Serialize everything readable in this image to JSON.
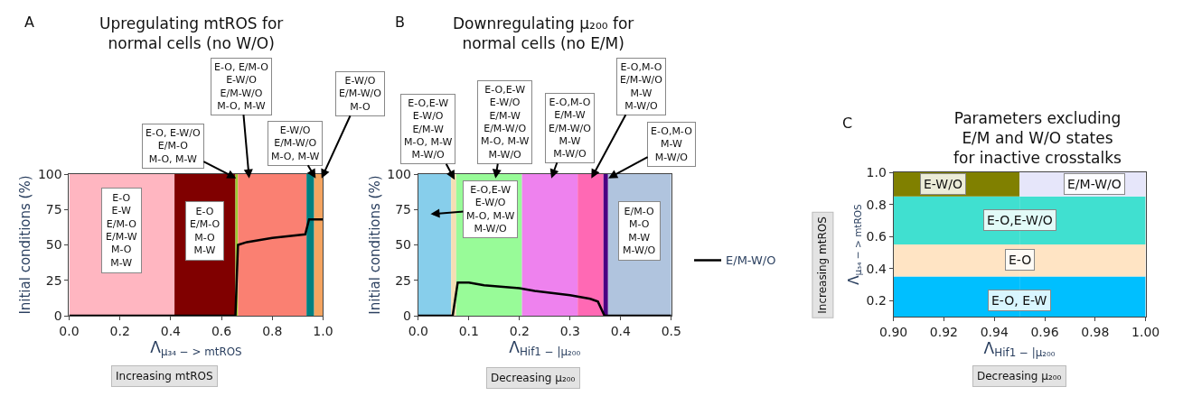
{
  "chart_data": [
    {
      "type": "line",
      "title": "Upregulating mtROS for\nnormal cells (no W/O)",
      "xlabel": "Λ$_{μ₃₄ − > mtROS}$",
      "ylabel": "Initial conditions (%)",
      "xlim": [
        0,
        1
      ],
      "xticks": [
        {
          "value": 0,
          "label": "0.0"
        },
        0.2,
        0.4,
        0.6,
        0.8,
        {
          "value": 1,
          "label": "1.0"
        }
      ],
      "ylim": [
        0,
        100
      ],
      "yticks": [
        0,
        25,
        50,
        75,
        100
      ],
      "grid": false,
      "legend": false,
      "series": [
        {
          "color": "#000000",
          "x": [
            0,
            0.655,
            0.665,
            0.7,
            0.8,
            0.93,
            0.945,
            1.0
          ],
          "values": [
            0,
            0,
            50,
            52,
            55,
            57.5,
            68,
            68
          ]
        }
      ],
      "bands": [
        {
          "axis": "x",
          "from": 0,
          "to": 0.415,
          "color": "#ffb6c1",
          "label": "E-O\nE-W\nE/M-O\nE/M-W\nM-O\nM-W"
        },
        {
          "axis": "x",
          "from": 0.415,
          "to": 0.655,
          "color": "#800000",
          "label": "E-O\nE/M-O\nM-O\nM-W"
        },
        {
          "axis": "x",
          "from": 0.655,
          "to": 0.665,
          "color": "#9acd32"
        },
        {
          "axis": "x",
          "from": 0.665,
          "to": 0.935,
          "color": "#fa8072"
        },
        {
          "axis": "x",
          "from": 0.935,
          "to": 0.965,
          "color": "#008080"
        },
        {
          "axis": "x",
          "from": 0.965,
          "to": 1.0,
          "color": "#f4a460"
        }
      ],
      "annotations": [
        "A",
        "Increasing mtROS",
        {
          "text": "E-O, E-W/O\nE/M-O\nM-O, M-W",
          "x": 0.658,
          "y": 97
        },
        {
          "text": "E-O, E/M-O\nE-W/O\nE/M-W/O\nM-O, M-W",
          "x": 0.709,
          "y": 97
        },
        {
          "text": "E-W/O\nE/M-W/O\nM-O, M-W",
          "x": 0.971,
          "y": 97
        },
        {
          "text": "E-W/O\nE/M-W/O\nM-O",
          "x": 0.994,
          "y": 97
        }
      ]
    },
    {
      "type": "line",
      "title": "Downregulating μ₂₀₀ for\nnormal cells (no E/M)",
      "xlabel": "Λ$_{Hif1 − |μ₂₀₀}$",
      "ylabel": "Initial conditions (%)",
      "xlim": [
        0,
        0.5
      ],
      "xticks": [
        {
          "value": 0,
          "label": "0.0"
        },
        0.1,
        0.2,
        0.3,
        0.4,
        0.5
      ],
      "ylim": [
        0,
        100
      ],
      "yticks": [
        0,
        25,
        50,
        75,
        100
      ],
      "grid": false,
      "legend": "right",
      "series": [
        {
          "name": "E/M-W/O",
          "color": "#000000",
          "x": [
            0,
            0.068,
            0.078,
            0.1,
            0.13,
            0.2,
            0.23,
            0.3,
            0.34,
            0.355,
            0.368,
            0.5
          ],
          "values": [
            0,
            0,
            23.5,
            23.5,
            21.5,
            19.5,
            17.5,
            14.5,
            12,
            10,
            0,
            0
          ]
        }
      ],
      "bands": [
        {
          "axis": "x",
          "from": 0,
          "to": 0.065,
          "color": "#87ceeb"
        },
        {
          "axis": "x",
          "from": 0.065,
          "to": 0.075,
          "color": "#f5deb3"
        },
        {
          "axis": "x",
          "from": 0.075,
          "to": 0.205,
          "color": "#98fb98"
        },
        {
          "axis": "x",
          "from": 0.205,
          "to": 0.315,
          "color": "#ee82ee"
        },
        {
          "axis": "x",
          "from": 0.315,
          "to": 0.366,
          "color": "#ff69b4"
        },
        {
          "axis": "x",
          "from": 0.366,
          "to": 0.375,
          "color": "#4b0082"
        },
        {
          "axis": "x",
          "from": 0.375,
          "to": 0.5,
          "color": "#b0c4de",
          "label": "E/M-O\nM-O\nM-W\nM-W/O"
        }
      ],
      "annotations": [
        "B",
        "Decreasing μ₂₀₀",
        {
          "text": "E-O,E-W\nE-W/O\nE/M-W\nM-O, M-W\nM-W/O",
          "x": 0.072,
          "y": 96
        },
        {
          "text": "E-O,E-W\nE-W/O\nE/M-W\nE/M-W/O\nM-O, M-W\nM-W/O",
          "x": 0.1525,
          "y": 97
        },
        {
          "text": "E-O,M-O\nE/M-W\nE/M-W/O\nM-W\nM-W/O",
          "x": 0.263,
          "y": 97
        },
        {
          "text": "E-O,M-O\nE/M-W/O\nM-W\nM-W/O",
          "x": 0.342,
          "y": 97
        },
        {
          "text": "E-O,M-O\nM-W\nM-W/O",
          "x": 0.3755,
          "y": 97
        },
        "E-O,E-W\nE-W/O\nM-O, M-W\nM-W/O"
      ]
    },
    {
      "type": "bar",
      "stacked": true,
      "title": "Parameters excluding\nE/M and W/O states\nfor inactive crosstalks",
      "xlabel": "Λ$_{Hif1 − |μ₂₀₀}$",
      "ylabel": "Λ$_{μ₃₄ − > mtROS}$",
      "x": [
        0.925,
        0.975
      ],
      "xlim": [
        0.9,
        1.0
      ],
      "xticks": [
        {
          "value": 0.9,
          "label": "0.90"
        },
        0.92,
        0.94,
        0.96,
        0.98,
        {
          "value": 1.0,
          "label": "1.00"
        }
      ],
      "ylim": [
        0.1,
        1.0
      ],
      "yticks": [
        0.2,
        0.4,
        0.6,
        0.8,
        {
          "value": 1.0,
          "label": "1.0"
        }
      ],
      "grid": false,
      "legend": false,
      "series": [
        {
          "color": "#00bfff",
          "values": [
            0.35,
            0.35
          ]
        },
        {
          "color": "#ffe4c4",
          "values": [
            0.2,
            0.2
          ]
        },
        {
          "color": "#40e0d0",
          "values": [
            0.3,
            0.3
          ]
        },
        {
          "colors": [
            "#808000",
            "#e6e6fa"
          ],
          "values": [
            0.15,
            0.15
          ]
        }
      ],
      "annotations": [
        "C",
        "Decreasing μ₂₀₀",
        "Increasing mtROS",
        "E-O, E-W",
        "E-O",
        "E-O,E-W/O",
        "E-W/O",
        "E/M-W/O"
      ]
    }
  ]
}
